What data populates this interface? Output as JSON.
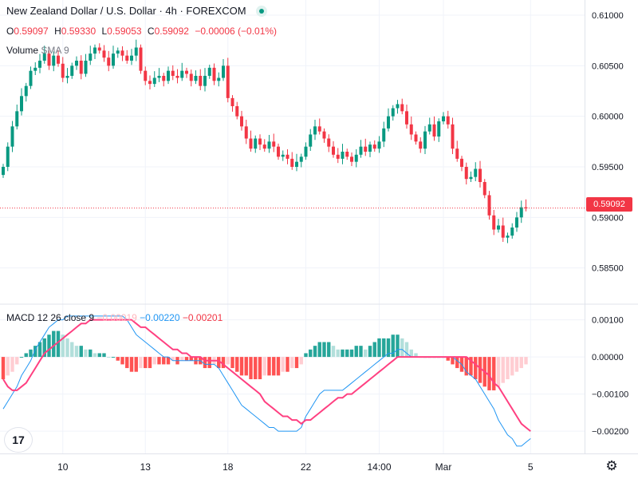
{
  "header": {
    "title": "New Zealand Dollar / U.S. Dollar · 4h · FOREXCOM",
    "ohlc": [
      {
        "k": "O",
        "v": "0.59097"
      },
      {
        "k": "H",
        "v": "0.59330"
      },
      {
        "k": "L",
        "v": "0.59053"
      },
      {
        "k": "C",
        "v": "0.59092"
      }
    ],
    "change": "−0.00006 (−0.01%)",
    "volume_label": "Volume",
    "volume_sma": "SMA 9",
    "macd_label": "MACD 12 26 close 9",
    "macd_hist_value": "−0.00019",
    "macd_value": "−0.00220",
    "macd_signal_value": "−0.00201",
    "last_price_badge": "0.59092"
  },
  "colors": {
    "up": "#089981",
    "down": "#f23645",
    "hist_up_strong": "#26a69a",
    "hist_up_weak": "#b2dfdb",
    "hist_down_strong": "#ff5252",
    "hist_down_weak": "#ffcdd2",
    "macd_line": "#2196f3",
    "signal_line": "#ff4081",
    "grid": "#f0f3fa"
  },
  "icons": {
    "logo": "tradingview-logo-icon",
    "settings": "gear-icon"
  },
  "chart_data": [
    {
      "type": "candlestick",
      "price_ticks": [
        "0.61000",
        "0.60500",
        "0.60000",
        "0.59500",
        "0.59000",
        "0.58500"
      ],
      "price_tick_values": [
        0.61,
        0.605,
        0.6,
        0.595,
        0.59,
        0.585
      ],
      "ylim": [
        0.5815,
        0.6115
      ],
      "last_price": 0.59092,
      "time_ticks": [
        {
          "label": "10",
          "index": 13
        },
        {
          "label": "13",
          "index": 31
        },
        {
          "label": "18",
          "index": 49
        },
        {
          "label": "22",
          "index": 66
        },
        {
          "label": "14:00",
          "index": 82
        },
        {
          "label": "Mar",
          "index": 96
        },
        {
          "label": "5",
          "index": 115
        }
      ],
      "closes": [
        0.595,
        0.597,
        0.599,
        0.6005,
        0.602,
        0.603,
        0.6045,
        0.6048,
        0.6055,
        0.6062,
        0.605,
        0.606,
        0.6052,
        0.6038,
        0.604,
        0.605,
        0.6055,
        0.6042,
        0.6055,
        0.6062,
        0.6068,
        0.6065,
        0.6058,
        0.605,
        0.6062,
        0.6065,
        0.606,
        0.6055,
        0.606,
        0.6068,
        0.6045,
        0.6035,
        0.6032,
        0.6038,
        0.604,
        0.6035,
        0.6045,
        0.604,
        0.6038,
        0.6045,
        0.6042,
        0.6035,
        0.604,
        0.603,
        0.604,
        0.6048,
        0.6035,
        0.6038,
        0.605,
        0.6018,
        0.601,
        0.6,
        0.599,
        0.5978,
        0.5968,
        0.5978,
        0.5972,
        0.5968,
        0.5975,
        0.597,
        0.596,
        0.5962,
        0.5958,
        0.595,
        0.5955,
        0.596,
        0.597,
        0.5982,
        0.599,
        0.5985,
        0.5978,
        0.597,
        0.5962,
        0.5958,
        0.5965,
        0.596,
        0.5955,
        0.5962,
        0.597,
        0.5965,
        0.5972,
        0.5968,
        0.5975,
        0.5988,
        0.6,
        0.6008,
        0.6012,
        0.6005,
        0.5992,
        0.5982,
        0.5975,
        0.5968,
        0.5985,
        0.5992,
        0.598,
        0.5995,
        0.6,
        0.5992,
        0.5968,
        0.5958,
        0.595,
        0.5938,
        0.594,
        0.5948,
        0.5935,
        0.5922,
        0.5902,
        0.5888,
        0.5892,
        0.588,
        0.5882,
        0.589,
        0.59,
        0.591,
        0.5909
      ]
    },
    {
      "type": "macd",
      "y_ticks": [
        "0.00100",
        "0.00000",
        "−0.00100",
        "−0.00200"
      ],
      "y_tick_values": [
        0.001,
        0.0,
        -0.001,
        -0.002
      ],
      "ylim": [
        -0.0026,
        0.0014
      ],
      "histogram": [
        -0.0006,
        -0.0005,
        -0.0004,
        -0.0002,
        0.0,
        0.0001,
        0.0002,
        0.0003,
        0.0004,
        0.0005,
        0.0006,
        0.0007,
        0.0007,
        0.0006,
        0.0005,
        0.0004,
        0.0003,
        0.0003,
        0.0002,
        0.0002,
        0.0001,
        0.0001,
        0.0001,
        0.0,
        0.0,
        -0.0001,
        -0.0002,
        -0.0003,
        -0.0004,
        -0.0004,
        -0.0003,
        -0.0003,
        -0.0003,
        -0.0002,
        -0.0002,
        -0.0002,
        -0.0002,
        -0.0001,
        -0.0002,
        -0.0001,
        -0.0001,
        -0.0001,
        -0.0002,
        -0.0002,
        -0.0003,
        -0.0003,
        -0.0002,
        -0.0003,
        -0.0003,
        -0.0002,
        -0.0003,
        -0.0004,
        -0.0005,
        -0.0005,
        -0.0006,
        -0.0006,
        -0.0006,
        -0.0005,
        -0.0005,
        -0.0005,
        -0.0005,
        -0.0004,
        -0.0004,
        -0.0003,
        -0.0003,
        -0.0002,
        0.0001,
        0.0002,
        0.0003,
        0.0004,
        0.0004,
        0.0004,
        0.0003,
        0.0002,
        0.0002,
        0.0002,
        0.0002,
        0.0003,
        0.0003,
        0.0002,
        0.0003,
        0.0004,
        0.0005,
        0.0005,
        0.0005,
        0.0006,
        0.0006,
        0.0005,
        0.0004,
        0.0002,
        0.0001,
        0.0,
        0.0,
        0.0,
        0.0,
        0.0,
        0.0,
        -0.0001,
        -0.0002,
        -0.0003,
        -0.0004,
        -0.0005,
        -0.0005,
        -0.0006,
        -0.0007,
        -0.0008,
        -0.0009,
        -0.0009,
        -0.0008,
        -0.0007,
        -0.0006,
        -0.0005,
        -0.0004,
        -0.0003,
        -0.0002
      ],
      "macd": [
        -0.0014,
        -0.0012,
        -0.001,
        -0.0008,
        -0.0005,
        -0.0003,
        -0.0001,
        0.0002,
        0.0004,
        0.0006,
        0.0008,
        0.0009,
        0.001,
        0.001,
        0.0011,
        0.0011,
        0.0011,
        0.0011,
        0.0011,
        0.0011,
        0.0011,
        0.0011,
        0.0011,
        0.0011,
        0.0011,
        0.0011,
        0.0011,
        0.001,
        0.0008,
        0.0006,
        0.0005,
        0.0004,
        0.0003,
        0.0002,
        0.0001,
        0.0,
        0.0,
        -0.0001,
        -0.0001,
        -0.0001,
        -0.0001,
        -0.0001,
        -0.0001,
        -0.0001,
        -0.0002,
        -0.0002,
        -0.0002,
        -0.0003,
        -0.0005,
        -0.0007,
        -0.0009,
        -0.0011,
        -0.0013,
        -0.0014,
        -0.0015,
        -0.0016,
        -0.0017,
        -0.0018,
        -0.0019,
        -0.0019,
        -0.002,
        -0.002,
        -0.002,
        -0.002,
        -0.002,
        -0.0019,
        -0.0016,
        -0.0014,
        -0.0012,
        -0.001,
        -0.0009,
        -0.0009,
        -0.0009,
        -0.0009,
        -0.0009,
        -0.0008,
        -0.0007,
        -0.0006,
        -0.0005,
        -0.0004,
        -0.0003,
        -0.0002,
        -0.0001,
        0.0,
        0.0001,
        0.0001,
        0.0002,
        0.0002,
        0.0001,
        0.0,
        0.0,
        0.0,
        0.0,
        0.0,
        0.0,
        0.0,
        0.0,
        0.0,
        0.0,
        -0.0001,
        -0.0002,
        -0.0004,
        -0.0005,
        -0.0006,
        -0.0008,
        -0.001,
        -0.0012,
        -0.0014,
        -0.0017,
        -0.0019,
        -0.0021,
        -0.0022,
        -0.0024,
        -0.0024,
        -0.0023,
        -0.0022
      ],
      "signal": [
        -0.0006,
        -0.0008,
        -0.0009,
        -0.0009,
        -0.0008,
        -0.0007,
        -0.0005,
        -0.0003,
        -0.0001,
        0.0001,
        0.0002,
        0.0003,
        0.0004,
        0.0005,
        0.0006,
        0.0007,
        0.0008,
        0.0009,
        0.0009,
        0.001,
        0.001,
        0.001,
        0.001,
        0.001,
        0.001,
        0.001,
        0.001,
        0.001,
        0.001,
        0.0009,
        0.0008,
        0.0008,
        0.0007,
        0.0006,
        0.0005,
        0.0004,
        0.0003,
        0.0002,
        0.0002,
        0.0001,
        0.0001,
        0.0,
        0.0,
        0.0,
        -0.0001,
        -0.0001,
        -0.0001,
        -0.0001,
        -0.0002,
        -0.0003,
        -0.0004,
        -0.0005,
        -0.0006,
        -0.0007,
        -0.0008,
        -0.0009,
        -0.001,
        -0.0012,
        -0.0013,
        -0.0014,
        -0.0015,
        -0.0016,
        -0.0016,
        -0.0017,
        -0.0017,
        -0.0018,
        -0.0017,
        -0.0017,
        -0.0016,
        -0.0015,
        -0.0014,
        -0.0013,
        -0.0012,
        -0.0011,
        -0.0011,
        -0.001,
        -0.001,
        -0.0009,
        -0.0008,
        -0.0007,
        -0.0006,
        -0.0005,
        -0.0004,
        -0.0003,
        -0.0002,
        -0.0001,
        0.0,
        0.0,
        0.0,
        0.0,
        0.0,
        0.0,
        0.0,
        0.0,
        0.0,
        0.0,
        0.0,
        0.0,
        0.0,
        0.0,
        0.0,
        0.0,
        -0.0001,
        -0.0002,
        -0.0003,
        -0.0004,
        -0.0005,
        -0.0007,
        -0.0008,
        -0.001,
        -0.0012,
        -0.0014,
        -0.0016,
        -0.0018,
        -0.0019,
        -0.002
      ]
    }
  ]
}
